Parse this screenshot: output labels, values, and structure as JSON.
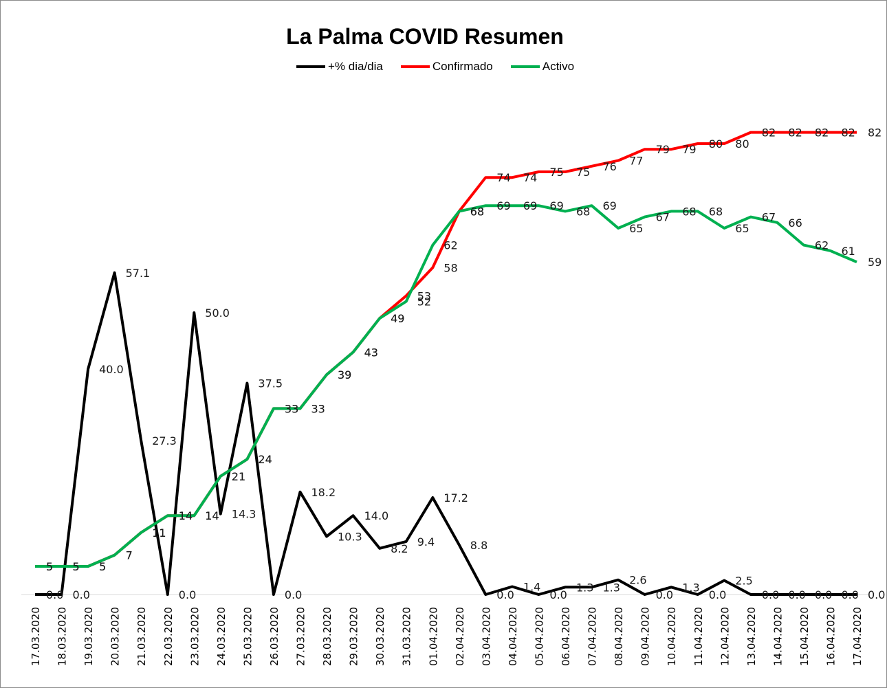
{
  "chart_data": {
    "type": "line",
    "title": "La Palma COVID Resumen",
    "xlabel": "",
    "ylabel": "",
    "ylim": [
      0,
      90
    ],
    "grid": false,
    "legend_position": "top",
    "categories": [
      "17.03.2020",
      "18.03.2020",
      "19.03.2020",
      "20.03.2020",
      "21.03.2020",
      "22.03.2020",
      "23.03.2020",
      "24.03.2020",
      "25.03.2020",
      "26.03.2020",
      "27.03.2020",
      "28.03.2020",
      "29.03.2020",
      "30.03.2020",
      "31.03.2020",
      "01.04.2020",
      "02.04.2020",
      "03.04.2020",
      "04.04.2020",
      "05.04.2020",
      "06.04.2020",
      "07.04.2020",
      "08.04.2020",
      "09.04.2020",
      "10.04.2020",
      "11.04.2020",
      "12.04.2020",
      "13.04.2020",
      "14.04.2020",
      "15.04.2020",
      "16.04.2020",
      "17.04.2020"
    ],
    "series": [
      {
        "name": "+% dia/dia",
        "color": "#000000",
        "values": [
          0.0,
          0.0,
          40.0,
          57.1,
          27.3,
          0.0,
          50.0,
          14.3,
          37.5,
          0.0,
          18.2,
          10.3,
          14.0,
          8.2,
          9.4,
          17.2,
          8.8,
          0.0,
          1.4,
          0.0,
          1.3,
          1.3,
          2.6,
          0.0,
          1.3,
          0.0,
          2.5,
          0.0,
          0.0,
          0.0,
          0.0,
          0.0
        ],
        "labels": [
          "0.0",
          "0.0",
          "40.0",
          "57.1",
          "27.3",
          "0.0",
          "50.0",
          "14.3",
          "37.5",
          "0.0",
          "18.2",
          "10.3",
          "14.0",
          "8.2",
          "9.4",
          "17.2",
          "8.8",
          "0.0",
          "1.4",
          "0.0",
          "1.3",
          "1.3",
          "2.6",
          "0.0",
          "1.3",
          "0.0",
          "2.5",
          "0.0",
          "0.0",
          "0.0",
          "0.0",
          "0.0"
        ]
      },
      {
        "name": "Confirmado",
        "color": "#ff0000",
        "values": [
          5,
          5,
          5,
          7,
          11,
          14,
          14,
          21,
          24,
          33,
          33,
          39,
          43,
          49,
          53,
          58,
          68,
          74,
          74,
          75,
          75,
          76,
          77,
          79,
          79,
          80,
          80,
          82,
          82,
          82,
          82,
          82
        ],
        "labels": [
          "5",
          "5",
          "5",
          "7",
          "11",
          "14",
          "14",
          "21",
          "24",
          "33",
          "33",
          "39",
          "43",
          "49",
          "53",
          "58",
          "68",
          "74",
          "74",
          "75",
          "75",
          "76",
          "77",
          "79",
          "79",
          "80",
          "80",
          "82",
          "82",
          "82",
          "82",
          "82"
        ]
      },
      {
        "name": "Activo",
        "color": "#00b050",
        "values": [
          5,
          5,
          5,
          7,
          11,
          14,
          14,
          21,
          24,
          33,
          33,
          39,
          43,
          49,
          52,
          62,
          68,
          69,
          69,
          69,
          68,
          69,
          65,
          67,
          68,
          68,
          65,
          67,
          66,
          62,
          61,
          59
        ],
        "labels": [
          "5",
          "5",
          "5",
          "7",
          "11",
          "14",
          "14",
          "21",
          "24",
          "33",
          "33",
          "39",
          "43",
          "49",
          "52",
          "62",
          "68",
          "69",
          "69",
          "69",
          "68",
          "69",
          "65",
          "67",
          "68",
          "68",
          "65",
          "67",
          "66",
          "62",
          "61",
          "59"
        ]
      }
    ]
  }
}
